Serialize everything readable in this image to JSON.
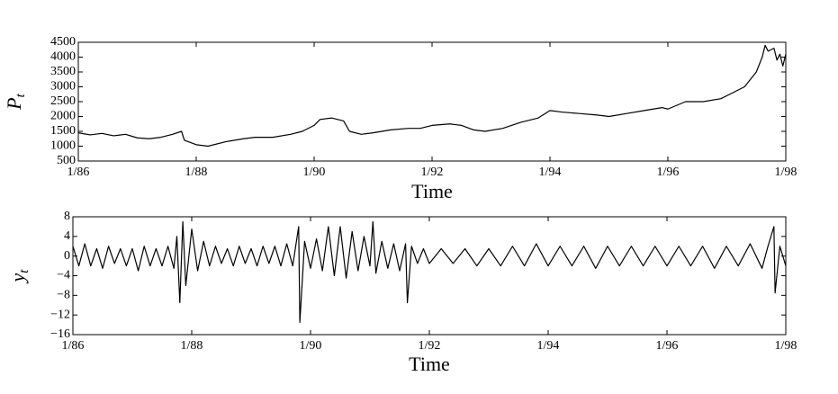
{
  "chart_data": [
    {
      "type": "line",
      "xlabel": "Time",
      "ylabel": "P",
      "ylabel_subscript": "t",
      "color": "#000000",
      "xlim": [
        1986,
        1998
      ],
      "xticks": [
        {
          "value": 1986,
          "label": "1/86"
        },
        {
          "value": 1988,
          "label": "1/88"
        },
        {
          "value": 1990,
          "label": "1/90"
        },
        {
          "value": 1992,
          "label": "1/92"
        },
        {
          "value": 1994,
          "label": "1/94"
        },
        {
          "value": 1996,
          "label": "1/96"
        },
        {
          "value": 1998,
          "label": "1/98"
        }
      ],
      "ylim": [
        500,
        4500
      ],
      "yticks": [
        500,
        1000,
        1500,
        2000,
        2500,
        3000,
        3500,
        4000,
        4500
      ],
      "x": [
        1986.0,
        1986.2,
        1986.4,
        1986.6,
        1986.8,
        1987.0,
        1987.2,
        1987.4,
        1987.6,
        1987.75,
        1987.8,
        1988.0,
        1988.2,
        1988.5,
        1988.8,
        1989.0,
        1989.3,
        1989.6,
        1989.8,
        1990.0,
        1990.1,
        1990.3,
        1990.5,
        1990.6,
        1990.8,
        1991.0,
        1991.3,
        1991.6,
        1991.8,
        1992.0,
        1992.3,
        1992.5,
        1992.7,
        1992.9,
        1993.2,
        1993.5,
        1993.8,
        1994.0,
        1994.2,
        1994.5,
        1994.8,
        1995.0,
        1995.3,
        1995.6,
        1995.9,
        1996.0,
        1996.3,
        1996.6,
        1996.9,
        1997.1,
        1997.3,
        1997.5,
        1997.6,
        1997.65,
        1997.7,
        1997.8,
        1997.85,
        1997.9,
        1997.95,
        1998.0
      ],
      "values": [
        1450,
        1380,
        1430,
        1350,
        1400,
        1280,
        1250,
        1300,
        1400,
        1500,
        1200,
        1050,
        1000,
        1150,
        1250,
        1300,
        1300,
        1400,
        1500,
        1700,
        1900,
        1950,
        1850,
        1500,
        1400,
        1450,
        1550,
        1600,
        1600,
        1700,
        1750,
        1700,
        1550,
        1500,
        1600,
        1800,
        1950,
        2200,
        2150,
        2100,
        2050,
        2000,
        2100,
        2200,
        2300,
        2250,
        2500,
        2500,
        2600,
        2800,
        3000,
        3500,
        4000,
        4400,
        4200,
        4300,
        3900,
        4100,
        3700,
        4100
      ]
    },
    {
      "type": "line",
      "xlabel": "Time",
      "ylabel": "y",
      "ylabel_subscript": "t",
      "color": "#000000",
      "xlim": [
        1986,
        1998
      ],
      "xticks": [
        {
          "value": 1986,
          "label": "1/86"
        },
        {
          "value": 1988,
          "label": "1/88"
        },
        {
          "value": 1990,
          "label": "1/90"
        },
        {
          "value": 1992,
          "label": "1/92"
        },
        {
          "value": 1994,
          "label": "1/94"
        },
        {
          "value": 1996,
          "label": "1/96"
        },
        {
          "value": 1998,
          "label": "1/98"
        }
      ],
      "ylim": [
        -16,
        8
      ],
      "yticks": [
        {
          "value": -16,
          "label": "−16"
        },
        {
          "value": -12,
          "label": "−12"
        },
        {
          "value": -8,
          "label": "−8"
        },
        {
          "value": -4,
          "label": "−4"
        },
        0,
        4,
        8
      ],
      "x": [
        1986.0,
        1986.1,
        1986.2,
        1986.3,
        1986.4,
        1986.5,
        1986.6,
        1986.7,
        1986.8,
        1986.9,
        1987.0,
        1987.1,
        1987.2,
        1987.3,
        1987.4,
        1987.5,
        1987.6,
        1987.7,
        1987.75,
        1987.8,
        1987.85,
        1987.9,
        1988.0,
        1988.1,
        1988.2,
        1988.3,
        1988.4,
        1988.5,
        1988.6,
        1988.7,
        1988.8,
        1988.9,
        1989.0,
        1989.1,
        1989.2,
        1989.3,
        1989.4,
        1989.5,
        1989.6,
        1989.7,
        1989.8,
        1989.82,
        1989.9,
        1990.0,
        1990.1,
        1990.2,
        1990.3,
        1990.4,
        1990.5,
        1990.6,
        1990.7,
        1990.8,
        1990.9,
        1991.0,
        1991.05,
        1991.1,
        1991.2,
        1991.3,
        1991.4,
        1991.5,
        1991.6,
        1991.63,
        1991.7,
        1991.8,
        1991.9,
        1992.0,
        1992.2,
        1992.4,
        1992.6,
        1992.8,
        1993.0,
        1993.2,
        1993.4,
        1993.6,
        1993.8,
        1994.0,
        1994.2,
        1994.4,
        1994.6,
        1994.8,
        1995.0,
        1995.2,
        1995.4,
        1995.6,
        1995.8,
        1996.0,
        1996.2,
        1996.4,
        1996.6,
        1996.8,
        1997.0,
        1997.2,
        1997.4,
        1997.6,
        1997.7,
        1997.8,
        1997.82,
        1997.9,
        1998.0
      ],
      "values": [
        2,
        -2,
        2.5,
        -2,
        1.5,
        -2.5,
        2,
        -1.5,
        1.5,
        -2,
        1.5,
        -3,
        2,
        -2,
        1.5,
        -2,
        2,
        -2.5,
        4,
        -9.5,
        7,
        -6,
        5.5,
        -3,
        3,
        -2,
        2,
        -1.5,
        1.5,
        -2,
        2,
        -1.5,
        1.5,
        -2,
        2,
        -1.5,
        2,
        -2,
        2.5,
        -2,
        6,
        -13.5,
        3,
        -2.5,
        3.5,
        -3,
        6,
        -4,
        6,
        -4.5,
        5,
        -3,
        4,
        -2,
        7,
        -3.5,
        3,
        -2.5,
        2.5,
        -3,
        2.5,
        -9.5,
        2,
        -1.5,
        1.5,
        -1.5,
        1.5,
        -1.5,
        1.5,
        -2,
        1.5,
        -2,
        2,
        -2,
        2.5,
        -2,
        2,
        -2,
        2,
        -2.5,
        2,
        -2,
        2,
        -2,
        2,
        -2,
        2,
        -2,
        2,
        -2.5,
        2,
        -2,
        2.5,
        -2.5,
        2,
        6,
        -7.5,
        2,
        -2
      ]
    }
  ]
}
